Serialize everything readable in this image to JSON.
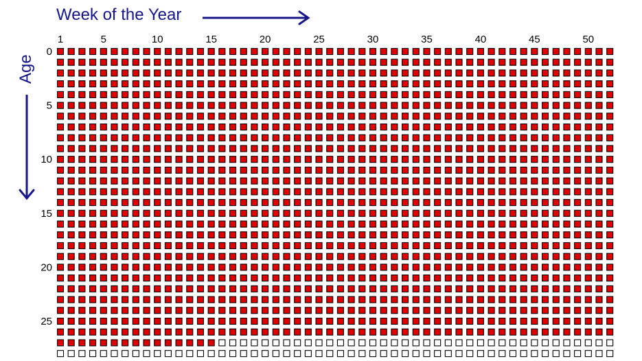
{
  "chart_data": {
    "type": "heatmap",
    "title": "",
    "xlabel": "Week of the Year",
    "ylabel": "Age",
    "weeks_per_year": 52,
    "x_tick_labels": [
      1,
      5,
      10,
      15,
      20,
      25,
      30,
      35,
      40,
      45,
      50
    ],
    "y_tick_labels": [
      0,
      5,
      10,
      15,
      20,
      25
    ],
    "lived_rows_full": 27,
    "lived_weeks_in_last_row": 15,
    "rows_visible": 29,
    "colors": {
      "lived_fill": "#e00000",
      "unlived_fill": "#ffffff",
      "outline": "#000000",
      "label_accent": "#16168a"
    }
  }
}
